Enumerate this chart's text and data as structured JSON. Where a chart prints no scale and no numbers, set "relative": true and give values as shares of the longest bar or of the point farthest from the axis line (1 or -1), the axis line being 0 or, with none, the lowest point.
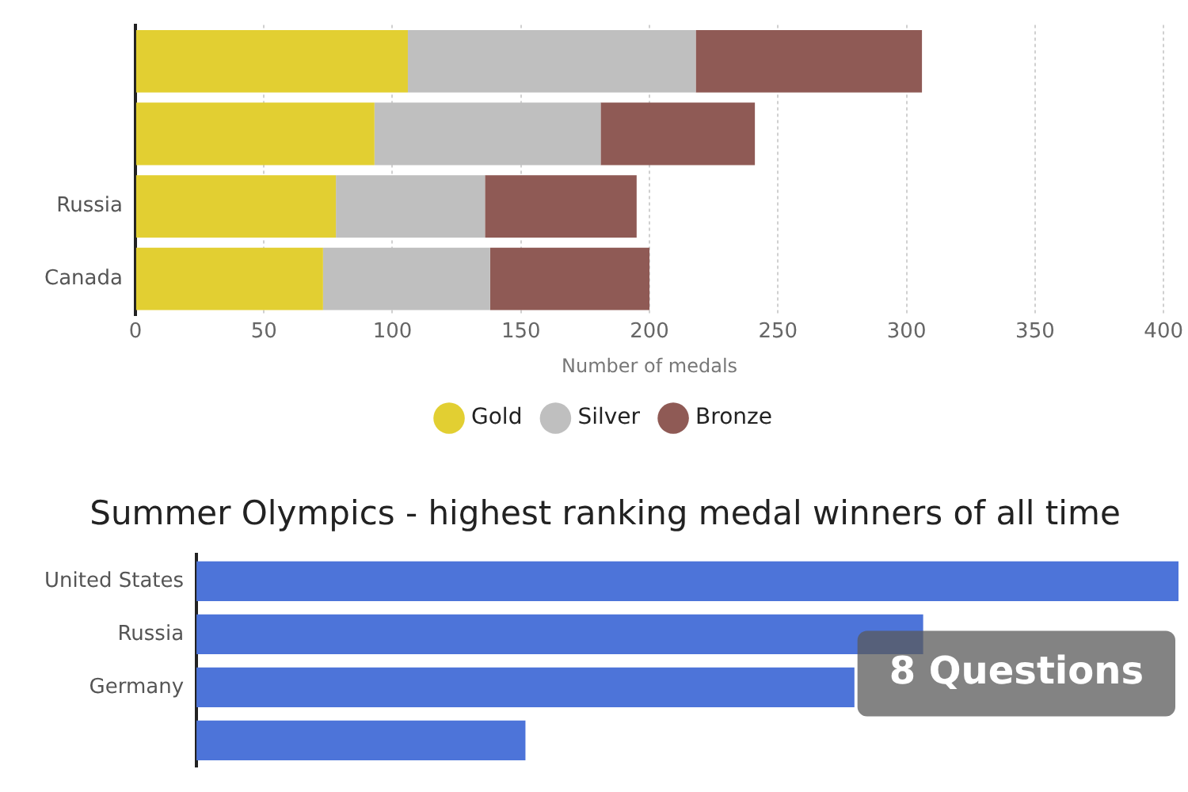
{
  "chart_data": [
    {
      "type": "bar",
      "orientation": "horizontal",
      "stacked": true,
      "xlabel": "Number of medals",
      "categories": [
        null,
        null,
        "Russia",
        "Canada"
      ],
      "series": [
        {
          "name": "Gold",
          "color": "#e2cf32",
          "values": [
            106,
            93,
            78,
            73
          ]
        },
        {
          "name": "Silver",
          "color": "#bfbfbf",
          "values": [
            112,
            88,
            58,
            65
          ]
        },
        {
          "name": "Bronze",
          "color": "#8f5a55",
          "values": [
            88,
            60,
            59,
            62
          ]
        }
      ],
      "xlim": [
        0,
        400
      ],
      "xticks": [
        0,
        50,
        100,
        150,
        200,
        250,
        300,
        350,
        400
      ],
      "grid": "x",
      "legend": "bottom"
    },
    {
      "type": "bar",
      "orientation": "horizontal",
      "relative": true,
      "title": "Summer Olympics - highest ranking medal winners of all time",
      "categories": [
        "United States",
        "Russia",
        "Germany",
        null
      ],
      "series": [
        {
          "color": "#4d74d9",
          "values": [
            1,
            0.74,
            0.67,
            0.335
          ]
        }
      ],
      "annotations": [
        "8 Questions"
      ]
    }
  ]
}
